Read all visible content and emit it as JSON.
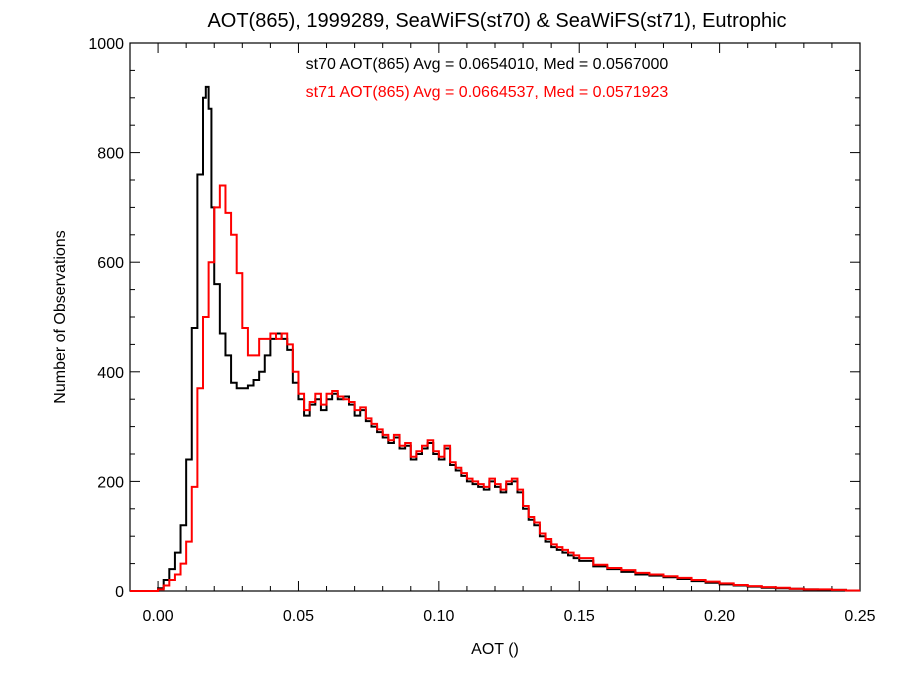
{
  "chart_data": {
    "type": "line",
    "title": "AOT(865), 1999289, SeaWiFS(st70) & SeaWiFS(st71), Eutrophic",
    "xlabel": "AOT ()",
    "ylabel": "Number of Observations",
    "xlim": [
      -0.01,
      0.25
    ],
    "ylim": [
      0,
      1000
    ],
    "x_ticks": [
      "0.00",
      "0.05",
      "0.10",
      "0.15",
      "0.20",
      "0.25"
    ],
    "x_tick_values": [
      0.0,
      0.05,
      0.1,
      0.15,
      0.2,
      0.25
    ],
    "y_ticks": [
      "0",
      "200",
      "400",
      "600",
      "800",
      "1000"
    ],
    "y_tick_values": [
      0,
      200,
      400,
      600,
      800,
      1000
    ],
    "grid": false,
    "step": true,
    "annotations": [
      {
        "text": "st70 AOT(865) Avg = 0.0654010, Med = 0.0567000",
        "color": "#000000"
      },
      {
        "text": "st71 AOT(865) Avg = 0.0664537, Med = 0.0571923",
        "color": "#ff0000"
      }
    ],
    "series": [
      {
        "color": "#000000",
        "x": [
          -0.002,
          0.0,
          0.002,
          0.004,
          0.006,
          0.008,
          0.01,
          0.012,
          0.014,
          0.016,
          0.017,
          0.018,
          0.019,
          0.02,
          0.022,
          0.024,
          0.026,
          0.028,
          0.03,
          0.032,
          0.034,
          0.036,
          0.038,
          0.04,
          0.042,
          0.044,
          0.046,
          0.048,
          0.05,
          0.052,
          0.054,
          0.056,
          0.058,
          0.06,
          0.062,
          0.064,
          0.066,
          0.068,
          0.07,
          0.072,
          0.074,
          0.076,
          0.078,
          0.08,
          0.082,
          0.084,
          0.086,
          0.088,
          0.09,
          0.092,
          0.094,
          0.096,
          0.098,
          0.1,
          0.102,
          0.104,
          0.106,
          0.108,
          0.11,
          0.112,
          0.114,
          0.116,
          0.118,
          0.12,
          0.122,
          0.124,
          0.126,
          0.128,
          0.13,
          0.132,
          0.134,
          0.136,
          0.138,
          0.14,
          0.142,
          0.144,
          0.146,
          0.148,
          0.15,
          0.155,
          0.16,
          0.165,
          0.17,
          0.175,
          0.18,
          0.185,
          0.19,
          0.195,
          0.2,
          0.205,
          0.21,
          0.215,
          0.22,
          0.225,
          0.23,
          0.235,
          0.24,
          0.245,
          0.25
        ],
        "y": [
          0,
          5,
          20,
          40,
          70,
          120,
          240,
          480,
          760,
          900,
          920,
          880,
          700,
          560,
          470,
          430,
          380,
          370,
          370,
          375,
          385,
          400,
          430,
          460,
          470,
          460,
          440,
          380,
          350,
          320,
          340,
          350,
          330,
          350,
          360,
          350,
          355,
          340,
          320,
          330,
          310,
          300,
          290,
          280,
          270,
          280,
          260,
          265,
          240,
          250,
          260,
          270,
          250,
          240,
          260,
          230,
          220,
          210,
          200,
          195,
          190,
          185,
          200,
          190,
          180,
          195,
          200,
          180,
          150,
          130,
          120,
          100,
          90,
          80,
          75,
          70,
          65,
          60,
          55,
          45,
          40,
          35,
          30,
          28,
          25,
          22,
          18,
          15,
          12,
          10,
          8,
          6,
          5,
          4,
          3,
          2,
          2,
          1,
          1
        ]
      },
      {
        "color": "#ff0000",
        "x": [
          -0.002,
          0.0,
          0.002,
          0.004,
          0.006,
          0.008,
          0.01,
          0.012,
          0.014,
          0.016,
          0.018,
          0.02,
          0.022,
          0.024,
          0.026,
          0.028,
          0.03,
          0.032,
          0.034,
          0.036,
          0.038,
          0.04,
          0.042,
          0.044,
          0.046,
          0.048,
          0.05,
          0.052,
          0.054,
          0.056,
          0.058,
          0.06,
          0.062,
          0.064,
          0.066,
          0.068,
          0.07,
          0.072,
          0.074,
          0.076,
          0.078,
          0.08,
          0.082,
          0.084,
          0.086,
          0.088,
          0.09,
          0.092,
          0.094,
          0.096,
          0.098,
          0.1,
          0.102,
          0.104,
          0.106,
          0.108,
          0.11,
          0.112,
          0.114,
          0.116,
          0.118,
          0.12,
          0.122,
          0.124,
          0.126,
          0.128,
          0.13,
          0.132,
          0.134,
          0.136,
          0.138,
          0.14,
          0.142,
          0.144,
          0.146,
          0.148,
          0.15,
          0.155,
          0.16,
          0.165,
          0.17,
          0.175,
          0.18,
          0.185,
          0.19,
          0.195,
          0.2,
          0.205,
          0.21,
          0.215,
          0.22,
          0.225,
          0.23,
          0.235,
          0.24,
          0.245,
          0.25
        ],
        "y": [
          0,
          3,
          10,
          20,
          30,
          50,
          90,
          190,
          370,
          500,
          600,
          700,
          740,
          690,
          650,
          580,
          480,
          430,
          430,
          460,
          460,
          470,
          460,
          470,
          450,
          400,
          360,
          330,
          345,
          360,
          340,
          360,
          365,
          355,
          350,
          345,
          330,
          335,
          315,
          305,
          295,
          285,
          275,
          285,
          265,
          270,
          245,
          255,
          265,
          275,
          255,
          245,
          265,
          235,
          225,
          215,
          205,
          200,
          195,
          190,
          205,
          195,
          185,
          200,
          205,
          185,
          155,
          135,
          125,
          105,
          95,
          85,
          80,
          75,
          70,
          65,
          60,
          48,
          42,
          38,
          33,
          30,
          27,
          24,
          20,
          17,
          14,
          11,
          9,
          7,
          6,
          4,
          3,
          3,
          2,
          1,
          1
        ]
      }
    ]
  }
}
